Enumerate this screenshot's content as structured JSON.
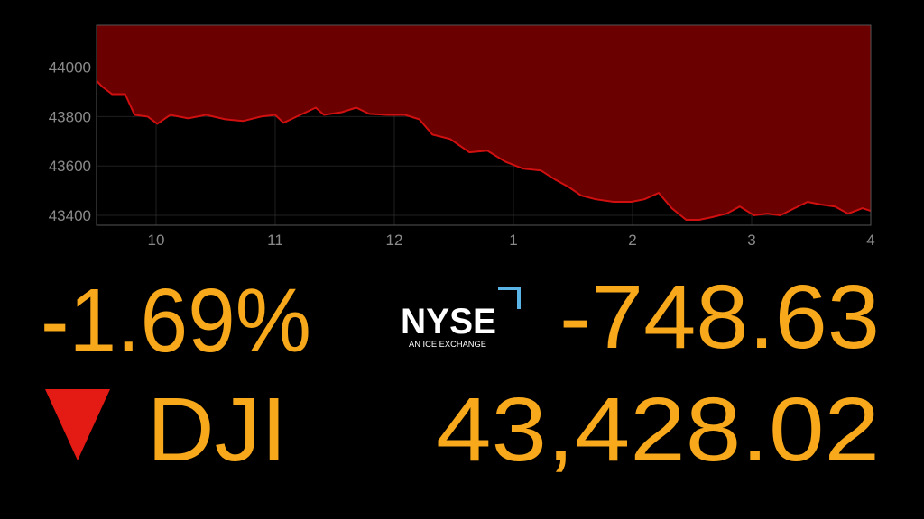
{
  "chart_data": {
    "type": "area",
    "x": [
      9.5,
      9.55,
      9.63,
      9.74,
      9.82,
      9.93,
      10.01,
      10.12,
      10.27,
      10.42,
      10.58,
      10.73,
      10.88,
      11.0,
      11.07,
      11.18,
      11.34,
      11.41,
      11.56,
      11.68,
      11.79,
      11.94,
      12.09,
      12.21,
      12.32,
      12.47,
      12.63,
      12.78,
      12.93,
      13.08,
      13.23,
      13.35,
      13.46,
      13.57,
      13.69,
      13.84,
      13.99,
      14.1,
      14.22,
      14.33,
      14.45,
      14.56,
      14.67,
      14.79,
      14.9,
      15.02,
      15.13,
      15.24,
      15.36,
      15.47,
      15.58,
      15.7,
      15.81,
      15.93,
      16.0
    ],
    "values": [
      43945,
      43920,
      43891,
      43891,
      43807,
      43800,
      43771,
      43807,
      43793,
      43807,
      43789,
      43782,
      43800,
      43807,
      43775,
      43800,
      43836,
      43807,
      43818,
      43836,
      43811,
      43807,
      43807,
      43789,
      43727,
      43709,
      43655,
      43662,
      43618,
      43589,
      43582,
      43545,
      43516,
      43480,
      43465,
      43455,
      43455,
      43465,
      43491,
      43429,
      43382,
      43382,
      43393,
      43407,
      43436,
      43400,
      43407,
      43400,
      43429,
      43455,
      43444,
      43436,
      43407,
      43429,
      43418
    ],
    "color": "#d01010",
    "fill": "#6a0000",
    "xlim": [
      9.5,
      16
    ],
    "xticks": [
      10,
      11,
      12,
      {
        "value": 13,
        "label": "1"
      },
      {
        "value": 14,
        "label": "2"
      },
      {
        "value": 15,
        "label": "3"
      },
      {
        "value": 16,
        "label": "4"
      }
    ],
    "ylim": [
      43360,
      44170
    ],
    "yticks": [
      43400,
      43600,
      43800,
      44000
    ],
    "grid": true
  },
  "logo": {
    "name": "NYSE",
    "tagline": "AN ICE EXCHANGE"
  },
  "quote": {
    "percent_change": "-1.69%",
    "change": "-748.63",
    "symbol": "DJI",
    "price": "43,428.02"
  }
}
